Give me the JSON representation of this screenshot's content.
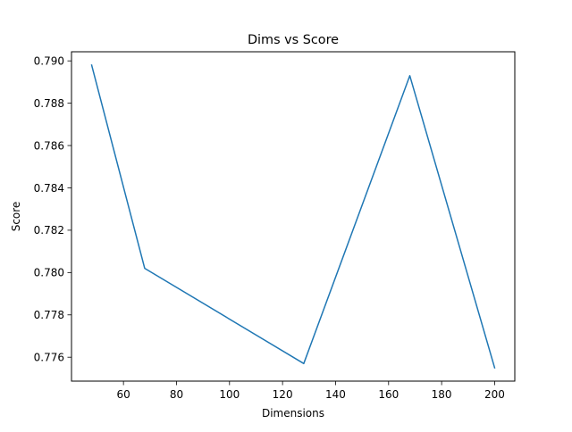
{
  "chart_data": {
    "type": "line",
    "title": "Dims vs Score",
    "xlabel": "Dimensions",
    "ylabel": "Score",
    "xlim": [
      40.4,
      207.6
    ],
    "ylim": [
      0.77487,
      0.79043
    ],
    "xticks": [
      60,
      80,
      100,
      120,
      140,
      160,
      180,
      200
    ],
    "yticks": [
      0.776,
      0.778,
      0.78,
      0.782,
      0.784,
      0.786,
      0.788,
      0.79
    ],
    "xtick_labels": [
      "60",
      "80",
      "100",
      "120",
      "140",
      "160",
      "180",
      "200"
    ],
    "ytick_labels": [
      "0.776",
      "0.778",
      "0.780",
      "0.782",
      "0.784",
      "0.786",
      "0.788",
      "0.790"
    ],
    "grid": false,
    "series": [
      {
        "color": "#1f77b4",
        "x": [
          48,
          68,
          128,
          168,
          200
        ],
        "y": [
          0.7898,
          0.7802,
          0.7757,
          0.7893,
          0.7755
        ]
      }
    ]
  }
}
